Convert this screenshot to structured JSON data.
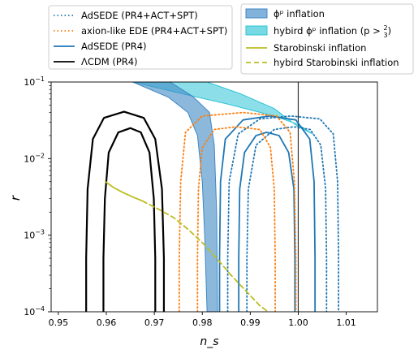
{
  "chart_data": {
    "type": "line",
    "title": "",
    "xlabel": "n_s",
    "ylabel": "r",
    "xlim": [
      0.9485,
      1.0165
    ],
    "ylim": [
      0.0001,
      0.1
    ],
    "yscale": "log",
    "grid": false,
    "x_ticks": [
      {
        "value": 0.95,
        "label": "0.95"
      },
      {
        "value": 0.96,
        "label": "0.96"
      },
      {
        "value": 0.97,
        "label": "0.97"
      },
      {
        "value": 0.98,
        "label": "0.98"
      },
      {
        "value": 0.99,
        "label": "0.99"
      },
      {
        "value": 1.0,
        "label": "1.00"
      },
      {
        "value": 1.01,
        "label": "1.01"
      }
    ],
    "y_ticks": [
      {
        "value": 0.1,
        "base": "10",
        "exp": "−1"
      },
      {
        "value": 0.01,
        "base": "10",
        "exp": "−2"
      },
      {
        "value": 0.001,
        "base": "10",
        "exp": "−3"
      },
      {
        "value": 0.0001,
        "base": "10",
        "exp": "−4"
      }
    ],
    "reference_lines": [
      {
        "axis": "x",
        "value": 1.0,
        "color": "#333333"
      }
    ],
    "legend_left": [
      {
        "label": "AdSEDE (PR4+ACT+SPT)",
        "color": "#1f77b4",
        "style": "dotted"
      },
      {
        "label": "axion-like EDE (PR4+ACT+SPT)",
        "color": "#ff7f0e",
        "style": "dotted"
      },
      {
        "label": "AdSEDE (PR4)",
        "color": "#1f77b4",
        "style": "solid"
      },
      {
        "label": "ΛCDM (PR4)",
        "color": "#000000",
        "style": "solid"
      }
    ],
    "legend_right": [
      {
        "label": "ϕᵖ inflation",
        "color": "#3f88c5",
        "style": "band"
      },
      {
        "label": "hybird ϕᵖ inflation (p > 2/3)",
        "color": "#2ec4d6",
        "style": "band"
      },
      {
        "label": "Starobinski inflation",
        "color": "#bcbd22",
        "style": "solid"
      },
      {
        "label": "hybird Starobinski inflation",
        "color": "#bcbd22",
        "style": "dashed"
      }
    ],
    "series": [
      {
        "name": "ΛCDM (PR4)",
        "color": "#000000",
        "style": "solid",
        "width": 2.2,
        "contours": [
          [
            [
              0.9594,
              0.0001
            ],
            [
              0.9594,
              0.0005
            ],
            [
              0.9597,
              0.003
            ],
            [
              0.9605,
              0.012
            ],
            [
              0.9625,
              0.022
            ],
            [
              0.965,
              0.025
            ],
            [
              0.9672,
              0.022
            ],
            [
              0.969,
              0.012
            ],
            [
              0.9699,
              0.003
            ],
            [
              0.9702,
              0.0005
            ],
            [
              0.9702,
              0.0001
            ]
          ],
          [
            [
              0.9558,
              0.0001
            ],
            [
              0.9558,
              0.0005
            ],
            [
              0.9561,
              0.004
            ],
            [
              0.9572,
              0.018
            ],
            [
              0.9595,
              0.034
            ],
            [
              0.9637,
              0.041
            ],
            [
              0.9678,
              0.034
            ],
            [
              0.9702,
              0.018
            ],
            [
              0.9716,
              0.004
            ],
            [
              0.972,
              0.0005
            ],
            [
              0.972,
              0.0001
            ]
          ]
        ]
      },
      {
        "name": "AdSEDE (PR4)",
        "color": "#1f77b4",
        "style": "solid",
        "width": 1.8,
        "contours": [
          [
            [
              0.9876,
              0.0001
            ],
            [
              0.9876,
              0.0005
            ],
            [
              0.9878,
              0.004
            ],
            [
              0.9888,
              0.012
            ],
            [
              0.9912,
              0.02
            ],
            [
              0.9934,
              0.022
            ],
            [
              0.996,
              0.02
            ],
            [
              0.998,
              0.012
            ],
            [
              0.9991,
              0.004
            ],
            [
              0.9993,
              0.0005
            ],
            [
              0.9993,
              0.0001
            ]
          ],
          [
            [
              0.9836,
              0.0001
            ],
            [
              0.9836,
              0.0005
            ],
            [
              0.9838,
              0.005
            ],
            [
              0.9848,
              0.018
            ],
            [
              0.9885,
              0.032
            ],
            [
              0.994,
              0.036
            ],
            [
              0.9995,
              0.032
            ],
            [
              1.0024,
              0.018
            ],
            [
              1.0033,
              0.005
            ],
            [
              1.0035,
              0.0005
            ],
            [
              1.0035,
              0.0001
            ]
          ]
        ]
      },
      {
        "name": "AdSEDE (PR4+ACT+SPT)",
        "color": "#1f77b4",
        "style": "dotted",
        "width": 1.8,
        "contours": [
          [
            [
              0.9893,
              0.0001
            ],
            [
              0.9893,
              0.0005
            ],
            [
              0.9896,
              0.004
            ],
            [
              0.9912,
              0.015
            ],
            [
              0.995,
              0.024
            ],
            [
              0.999,
              0.026
            ],
            [
              1.0025,
              0.024
            ],
            [
              1.0047,
              0.015
            ],
            [
              1.0057,
              0.004
            ],
            [
              1.0059,
              0.0005
            ],
            [
              1.0059,
              0.0001
            ]
          ],
          [
            [
              0.9853,
              0.0001
            ],
            [
              0.9853,
              0.0005
            ],
            [
              0.9856,
              0.005
            ],
            [
              0.9875,
              0.021
            ],
            [
              0.992,
              0.033
            ],
            [
              0.9985,
              0.036
            ],
            [
              1.0045,
              0.033
            ],
            [
              1.0073,
              0.021
            ],
            [
              1.0082,
              0.005
            ],
            [
              1.0084,
              0.0005
            ],
            [
              1.0084,
              0.0001
            ]
          ]
        ]
      },
      {
        "name": "axion-like EDE (PR4+ACT+SPT)",
        "color": "#ff7f0e",
        "style": "dotted",
        "width": 1.8,
        "contours": [
          [
            [
              0.979,
              0.0001
            ],
            [
              0.979,
              0.0005
            ],
            [
              0.9792,
              0.004
            ],
            [
              0.98,
              0.014
            ],
            [
              0.9825,
              0.024
            ],
            [
              0.987,
              0.026
            ],
            [
              0.992,
              0.024
            ],
            [
              0.9942,
              0.014
            ],
            [
              0.995,
              0.004
            ],
            [
              0.9952,
              0.0005
            ],
            [
              0.9952,
              0.0001
            ]
          ],
          [
            [
              0.9752,
              0.0001
            ],
            [
              0.9752,
              0.0005
            ],
            [
              0.9755,
              0.005
            ],
            [
              0.9765,
              0.022
            ],
            [
              0.98,
              0.036
            ],
            [
              0.9885,
              0.04
            ],
            [
              0.9955,
              0.036
            ],
            [
              0.9983,
              0.022
            ],
            [
              0.9992,
              0.005
            ],
            [
              0.9995,
              0.0005
            ],
            [
              0.9995,
              0.0001
            ]
          ]
        ]
      },
      {
        "name": "Starobinski inflation",
        "color": "#bcbd22",
        "style": "solid",
        "width": 1.8,
        "points": [
          [
            0.9598,
            0.005
          ],
          [
            0.9615,
            0.0042
          ],
          [
            0.9635,
            0.0036
          ],
          [
            0.9658,
            0.0031
          ],
          [
            0.9675,
            0.0028
          ]
        ]
      },
      {
        "name": "hybird Starobinski inflation",
        "color": "#bcbd22",
        "style": "dashed",
        "width": 1.8,
        "points": [
          [
            0.9675,
            0.0028
          ],
          [
            0.9708,
            0.0022
          ],
          [
            0.974,
            0.0017
          ],
          [
            0.977,
            0.0012
          ],
          [
            0.98,
            0.0008
          ],
          [
            0.983,
            0.0005
          ],
          [
            0.986,
            0.0003
          ],
          [
            0.989,
            0.00019
          ],
          [
            0.992,
            0.00012
          ],
          [
            0.9937,
            0.0001
          ]
        ]
      }
    ],
    "bands": [
      {
        "name": "hybird ϕᵖ inflation (p > 2/3)",
        "color": "#2ec4d6",
        "opacity": 0.55,
        "upper": [
          [
            0.9655,
            0.1
          ],
          [
            0.976,
            0.07
          ],
          [
            0.985,
            0.052
          ],
          [
            0.995,
            0.036
          ],
          [
            1.0,
            0.028
          ],
          [
            1.003,
            0.021
          ]
        ],
        "lower": [
          [
            0.981,
            0.1
          ],
          [
            0.988,
            0.07
          ],
          [
            0.995,
            0.045
          ],
          [
            1.0,
            0.026
          ],
          [
            1.003,
            0.021
          ]
        ]
      },
      {
        "name": "ϕᵖ inflation",
        "color": "#3f88c5",
        "opacity": 0.6,
        "upper": [
          [
            0.9655,
            0.1
          ],
          [
            0.973,
            0.063
          ],
          [
            0.977,
            0.04
          ],
          [
            0.979,
            0.02
          ],
          [
            0.98,
            0.005
          ],
          [
            0.9805,
            0.001
          ],
          [
            0.981,
            0.0001
          ]
        ],
        "lower": [
          [
            0.9733,
            0.1
          ],
          [
            0.978,
            0.065
          ],
          [
            0.9815,
            0.04
          ],
          [
            0.9825,
            0.015
          ],
          [
            0.983,
            0.002
          ],
          [
            0.9832,
            0.0001
          ]
        ]
      }
    ]
  }
}
